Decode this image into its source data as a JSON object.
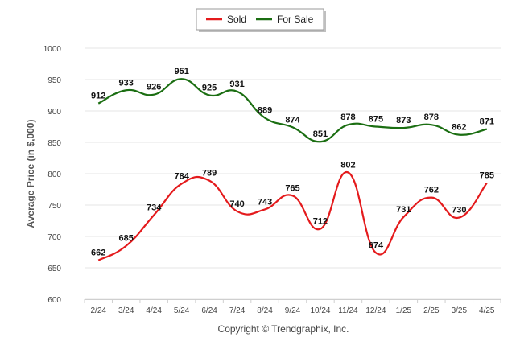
{
  "chart_data": {
    "type": "line",
    "ylabel": "Average Price (in $,000)",
    "categories": [
      "2/24",
      "3/24",
      "4/24",
      "5/24",
      "6/24",
      "7/24",
      "8/24",
      "9/24",
      "10/24",
      "11/24",
      "12/24",
      "1/25",
      "2/25",
      "3/25",
      "4/25"
    ],
    "ylim": [
      600,
      1000
    ],
    "yticks": [
      600,
      650,
      700,
      750,
      800,
      850,
      900,
      950,
      1000
    ],
    "grid": true,
    "legend_position": "top-center",
    "series": [
      {
        "name": "Sold",
        "color": "#e41a1c",
        "values": [
          662,
          685,
          734,
          784,
          789,
          740,
          743,
          765,
          712,
          802,
          674,
          731,
          762,
          730,
          785
        ]
      },
      {
        "name": "For Sale",
        "color": "#1b6e12",
        "values": [
          912,
          933,
          926,
          951,
          925,
          931,
          889,
          874,
          851,
          878,
          875,
          873,
          878,
          862,
          871
        ]
      }
    ]
  },
  "footer": {
    "copyright": "Copyright © Trendgraphix, Inc."
  }
}
